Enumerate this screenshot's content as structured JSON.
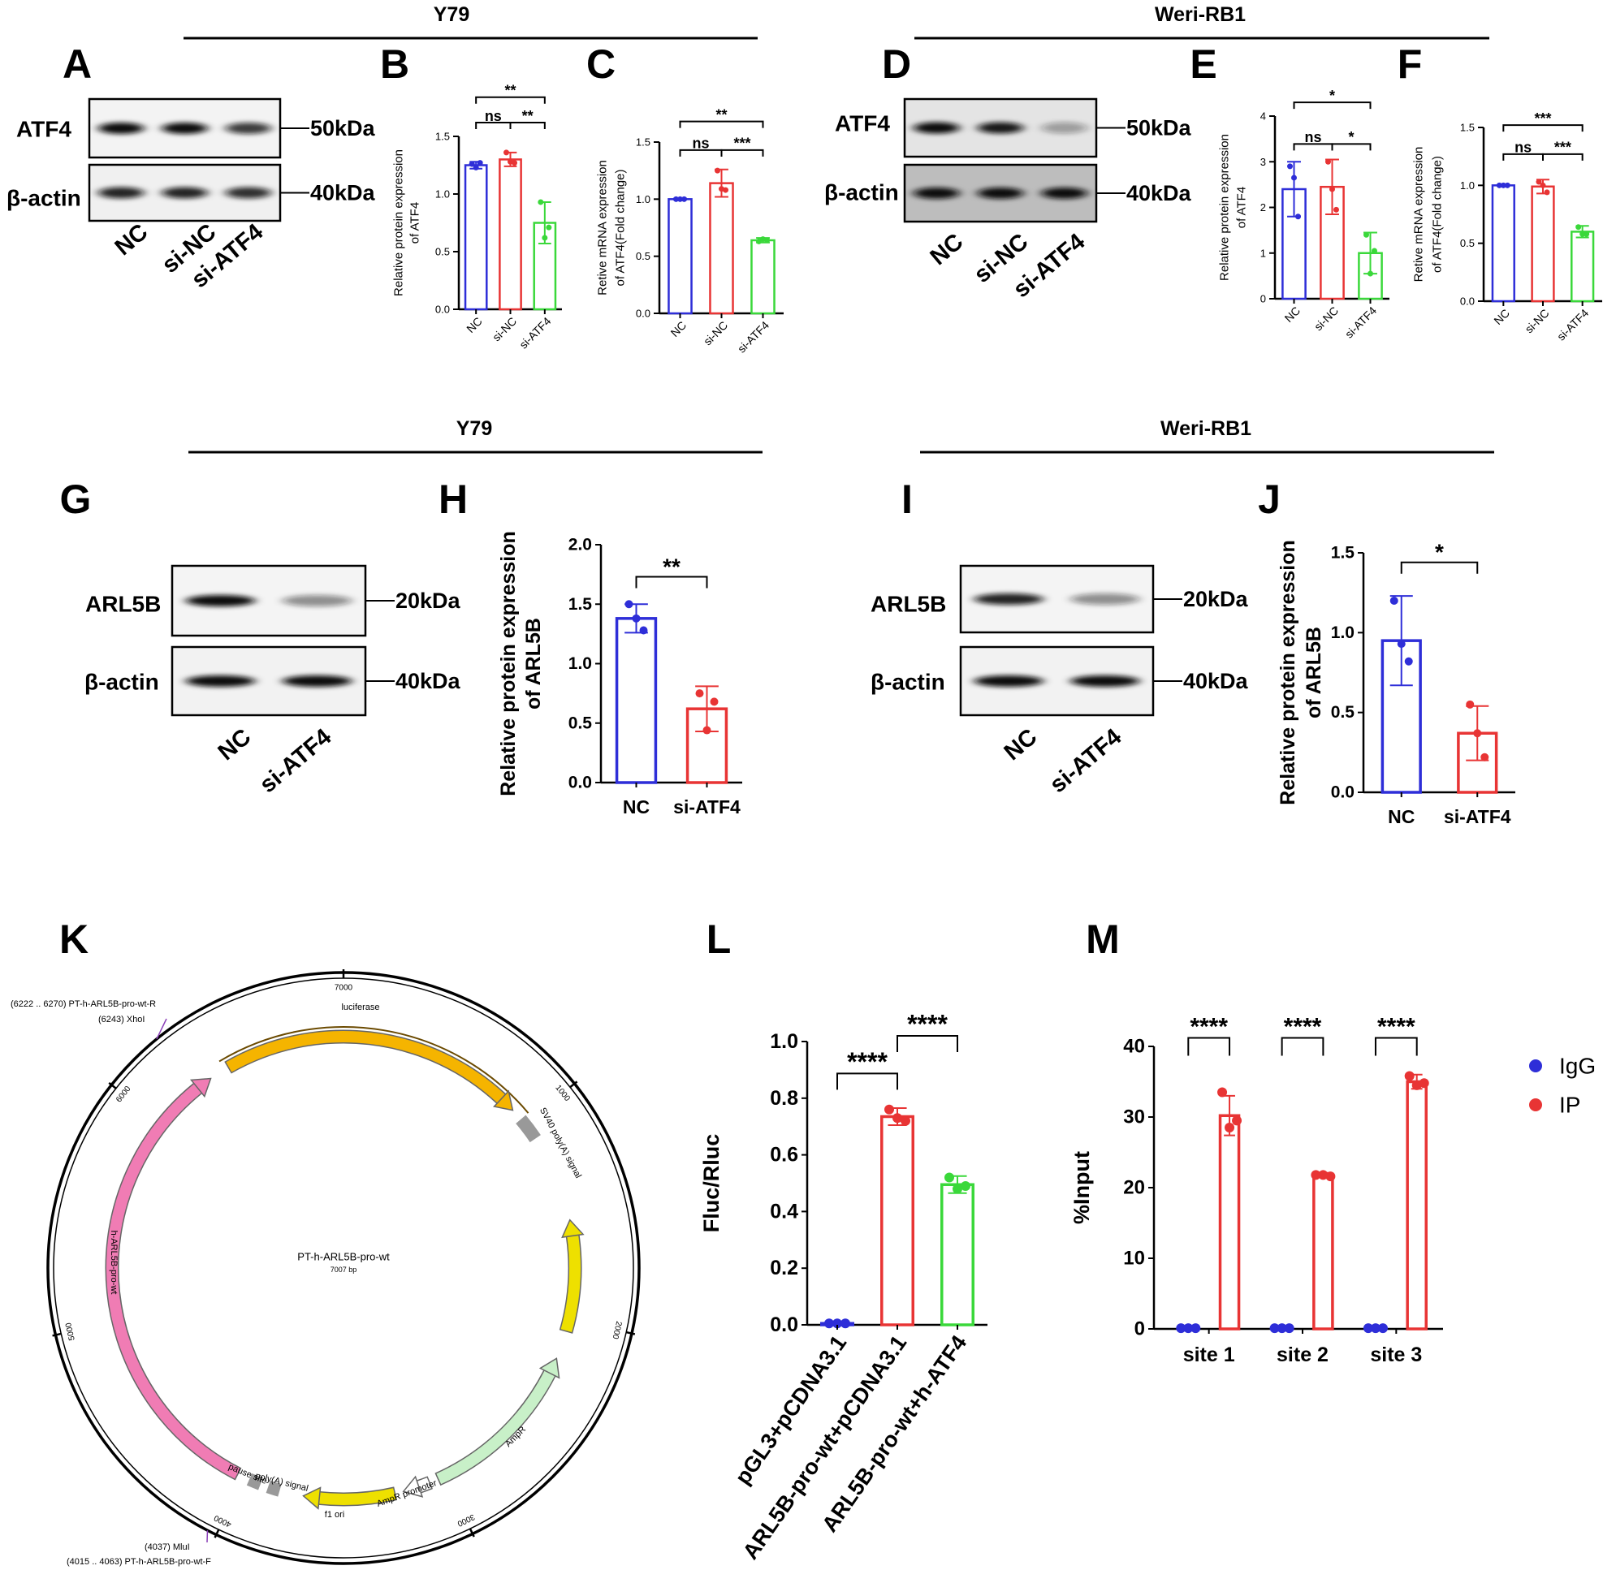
{
  "panel_letters": [
    "A",
    "B",
    "C",
    "D",
    "E",
    "F",
    "G",
    "H",
    "I",
    "J",
    "K",
    "L",
    "M"
  ],
  "headers": [
    "Y79",
    "Weri-RB1",
    "Y79",
    "Weri-RB1"
  ],
  "blots": [
    {
      "proteins": [
        "ATF4",
        "β-actin"
      ],
      "sizes": [
        "50kDa",
        "40kDa"
      ],
      "lanes": [
        "NC",
        "si-NC",
        "si-ATF4"
      ]
    },
    {
      "proteins": [
        "ATF4",
        "β-actin"
      ],
      "sizes": [
        "50kDa",
        "40kDa"
      ],
      "lanes": [
        "NC",
        "si-NC",
        "si-ATF4"
      ]
    },
    {
      "proteins": [
        "ARL5B",
        "β-actin"
      ],
      "sizes": [
        "20kDa",
        "40kDa"
      ],
      "lanes": [
        "NC",
        "si-ATF4"
      ]
    },
    {
      "proteins": [
        "ARL5B",
        "β-actin"
      ],
      "sizes": [
        "20kDa",
        "40kDa"
      ],
      "lanes": [
        "NC",
        "si-ATF4"
      ]
    }
  ],
  "plasmid": {
    "name": "PT-h-ARL5B-pro-wt",
    "size": "7007 bp",
    "features": [
      "luciferase",
      "SV40 poly(A) signal",
      "h-ARL5B-pro-wt",
      "AmpR",
      "AmpR promoter",
      "f1 ori",
      "poly(A) signal",
      "pause site"
    ],
    "scale": [
      "7000",
      "1000",
      "2000",
      "3000",
      "4000",
      "5000",
      "6000"
    ],
    "sites": [
      "(6222 .. 6270) PT-h-ARL5B-pro-wt-R",
      "(6243) XhoI",
      "(4037) MluI",
      "(4015 .. 4063) PT-h-ARL5B-pro-wt-F"
    ]
  },
  "chart_data": [
    {
      "type": "bar",
      "y_label": [
        "Relative protein expression",
        "of ATF4"
      ],
      "categories": [
        "NC",
        "si-NC",
        "si-ATF4"
      ],
      "colors": [
        "#2e2ed8",
        "#e83434",
        "#3ad83a"
      ],
      "values": [
        1.25,
        1.3,
        0.75
      ],
      "errors": [
        0.03,
        0.06,
        0.18
      ],
      "points": [
        [
          1.26,
          1.23,
          1.27
        ],
        [
          1.36,
          1.28,
          1.27
        ],
        [
          0.93,
          0.62,
          0.71
        ]
      ],
      "ylim": [
        0,
        1.5
      ],
      "yticks": [
        {
          "value": 0,
          "label": "0.0"
        },
        0.5,
        {
          "value": 1,
          "label": "1.0"
        },
        1.5
      ],
      "significance": [
        "ns",
        "**",
        "**"
      ]
    },
    {
      "type": "bar",
      "y_label": [
        "Retive mRNA expression",
        "of ATF4(Fold change)"
      ],
      "categories": [
        "NC",
        "si-NC",
        "si-ATF4"
      ],
      "colors": [
        "#2e2ed8",
        "#e83434",
        "#3ad83a"
      ],
      "values": [
        1.0,
        1.14,
        0.64
      ],
      "errors": [
        0.005,
        0.12,
        0.02
      ],
      "points": [
        [
          1.0,
          1.0,
          1.0
        ],
        [
          1.25,
          1.09,
          1.08
        ],
        [
          0.63,
          0.65,
          0.64
        ]
      ],
      "ylim": [
        0,
        1.5
      ],
      "yticks": [
        {
          "value": 0,
          "label": "0.0"
        },
        0.5,
        {
          "value": 1,
          "label": "1.0"
        },
        1.5
      ],
      "significance": [
        "ns",
        "***",
        "**"
      ]
    },
    {
      "type": "bar",
      "y_label": [
        "Relative protein expression",
        "of ATF4"
      ],
      "categories": [
        "NC",
        "si-NC",
        "si-ATF4"
      ],
      "colors": [
        "#2e2ed8",
        "#e83434",
        "#3ad83a"
      ],
      "values": [
        2.4,
        2.45,
        1.0
      ],
      "errors": [
        0.6,
        0.6,
        0.45
      ],
      "points": [
        [
          2.9,
          2.65,
          1.8
        ],
        [
          3.0,
          2.4,
          1.95
        ],
        [
          1.4,
          0.55,
          1.05
        ]
      ],
      "ylim": [
        0,
        4
      ],
      "yticks": [
        0,
        1,
        2,
        3,
        4
      ],
      "significance": [
        "ns",
        "*",
        "*"
      ]
    },
    {
      "type": "bar",
      "y_label": [
        "Retive mRNA expression",
        "of ATF4(Fold change)"
      ],
      "categories": [
        "NC",
        "si-NC",
        "si-ATF4"
      ],
      "colors": [
        "#2e2ed8",
        "#e83434",
        "#3ad83a"
      ],
      "values": [
        1.0,
        0.99,
        0.6
      ],
      "errors": [
        0.005,
        0.06,
        0.05
      ],
      "points": [
        [
          1.0,
          1.0,
          1.0
        ],
        [
          1.03,
          1.0,
          0.94
        ],
        [
          0.64,
          0.58,
          0.58
        ]
      ],
      "ylim": [
        0,
        1.5
      ],
      "yticks": [
        {
          "value": 0,
          "label": "0.0"
        },
        0.5,
        {
          "value": 1,
          "label": "1.0"
        },
        1.5
      ],
      "significance": [
        "ns",
        "***",
        "***"
      ]
    },
    {
      "type": "bar",
      "y_label": [
        "Relative protein expression",
        "of ARL5B"
      ],
      "categories": [
        "NC",
        "si-ATF4"
      ],
      "colors": [
        "#2e2ed8",
        "#e83434"
      ],
      "values": [
        1.38,
        0.62
      ],
      "errors": [
        0.12,
        0.19
      ],
      "points": [
        [
          1.5,
          1.38,
          1.28
        ],
        [
          0.75,
          0.44,
          0.68
        ]
      ],
      "ylim": [
        0,
        2
      ],
      "yticks": [
        {
          "value": 0,
          "label": "0.0"
        },
        0.5,
        {
          "value": 1,
          "label": "1.0"
        },
        1.5,
        {
          "value": 2,
          "label": "2.0"
        }
      ],
      "significance": [
        "**"
      ]
    },
    {
      "type": "bar",
      "y_label": [
        "Relative protein expression",
        "of ARL5B"
      ],
      "categories": [
        "NC",
        "si-ATF4"
      ],
      "colors": [
        "#2e2ed8",
        "#e83434"
      ],
      "values": [
        0.95,
        0.37
      ],
      "errors": [
        0.28,
        0.17
      ],
      "points": [
        [
          1.2,
          0.93,
          0.82
        ],
        [
          0.55,
          0.37,
          0.22
        ]
      ],
      "ylim": [
        0,
        1.5
      ],
      "yticks": [
        {
          "value": 0,
          "label": "0.0"
        },
        0.5,
        {
          "value": 1,
          "label": "1.0"
        },
        1.5
      ],
      "significance": [
        "*"
      ]
    },
    {
      "type": "bar",
      "y_label": [
        "Fluc/Rluc"
      ],
      "categories": [
        "pGL3+pCDNA3.1",
        "ARL5B-pro-wt+pCDNA3.1",
        "ARL5B-pro-wt+h-ATF4"
      ],
      "colors": [
        "#2e2ed8",
        "#e83434",
        "#3ad83a"
      ],
      "values": [
        0.005,
        0.735,
        0.495
      ],
      "errors": [
        0.002,
        0.03,
        0.03
      ],
      "points": [
        [
          0.005,
          0.005,
          0.005
        ],
        [
          0.76,
          0.73,
          0.72
        ],
        [
          0.52,
          0.48,
          0.49
        ]
      ],
      "ylim": [
        0,
        1
      ],
      "yticks": [
        {
          "value": 0,
          "label": "0.0"
        },
        0.2,
        0.4,
        0.6,
        0.8,
        {
          "value": 1,
          "label": "1.0"
        }
      ],
      "significance": [
        "****",
        "****"
      ]
    },
    {
      "type": "grouped_bar",
      "y_label": [
        "%Input"
      ],
      "categories": [
        "site 1",
        "site 2",
        "site 3"
      ],
      "series": [
        {
          "name": "IgG",
          "color": "#2e2ed8",
          "values": [
            0.1,
            0.1,
            0.1
          ],
          "errors": [
            0,
            0,
            0
          ],
          "points": [
            [
              0.1,
              0.1,
              0.1
            ],
            [
              0.1,
              0.1,
              0.1
            ],
            [
              0.1,
              0.1,
              0.1
            ]
          ]
        },
        {
          "name": "IP",
          "color": "#e83434",
          "values": [
            30.2,
            21.8,
            35.0
          ],
          "errors": [
            2.8,
            0.3,
            1.0
          ],
          "points": [
            [
              33.5,
              28.5,
              29.5
            ],
            [
              21.8,
              21.8,
              21.6
            ],
            [
              35.8,
              34.5,
              34.8
            ]
          ]
        }
      ],
      "ylim": [
        0,
        40
      ],
      "yticks": [
        0,
        10,
        20,
        30,
        40
      ],
      "significance": [
        "****",
        "****",
        "****"
      ],
      "legend": "right"
    }
  ]
}
